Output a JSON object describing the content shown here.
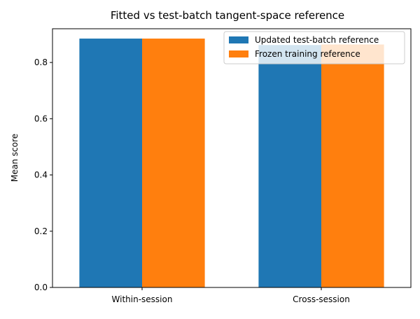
{
  "chart_data": {
    "type": "bar",
    "title": "Fitted vs test-batch tangent-space reference",
    "xlabel": "",
    "ylabel": "Mean score",
    "categories": [
      "Within-session",
      "Cross-session"
    ],
    "series": [
      {
        "name": "Updated test-batch reference",
        "values": [
          0.885,
          0.862
        ],
        "color": "#1f77b4"
      },
      {
        "name": "Frozen training reference",
        "values": [
          0.885,
          0.864
        ],
        "color": "#ff7f0e"
      }
    ],
    "ylim": [
      0,
      0.92
    ],
    "yticks": [
      0.0,
      0.2,
      0.4,
      0.6,
      0.8
    ],
    "ytick_labels": [
      "0.0",
      "0.2",
      "0.4",
      "0.6",
      "0.8"
    ],
    "grid": false,
    "legend_position": "top-right"
  }
}
